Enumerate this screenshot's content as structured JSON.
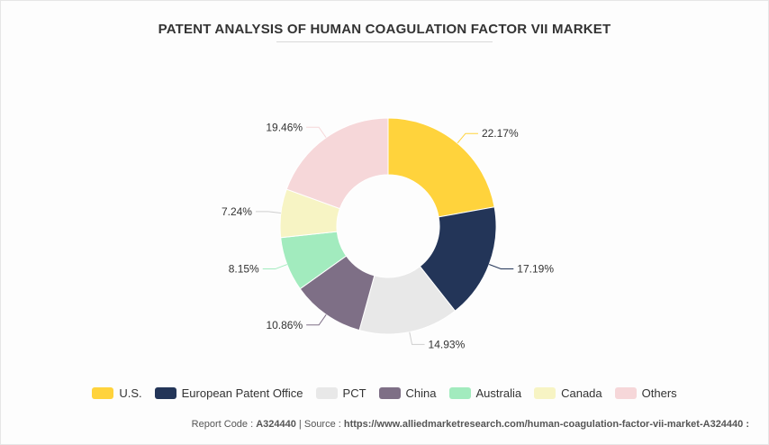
{
  "title": "PATENT ANALYSIS OF HUMAN COAGULATION FACTOR VII MARKET",
  "chart_data": {
    "type": "pie",
    "variant": "donut",
    "categories": [
      "U.S.",
      "European Patent Office",
      "PCT",
      "China",
      "Australia",
      "Canada",
      "Others"
    ],
    "values": [
      22.17,
      17.19,
      14.93,
      10.86,
      8.15,
      7.24,
      19.46
    ],
    "labels": [
      "22.17%",
      "17.19%",
      "14.93%",
      "10.86%",
      "8.15%",
      "7.24%",
      "19.46%"
    ],
    "colors": [
      "#FFD33C",
      "#233558",
      "#E8E8E8",
      "#7E6F86",
      "#A2EBBE",
      "#F7F4C4",
      "#F6D7D9"
    ],
    "legend_position": "bottom"
  },
  "footer": {
    "code_label": "Report Code : ",
    "code_value": "A324440",
    "separator": "  |  ",
    "source_label": "Source : ",
    "source_value": "https://www.alliedmarketresearch.com/human-coagulation-factor-vii-market-A324440 :"
  }
}
